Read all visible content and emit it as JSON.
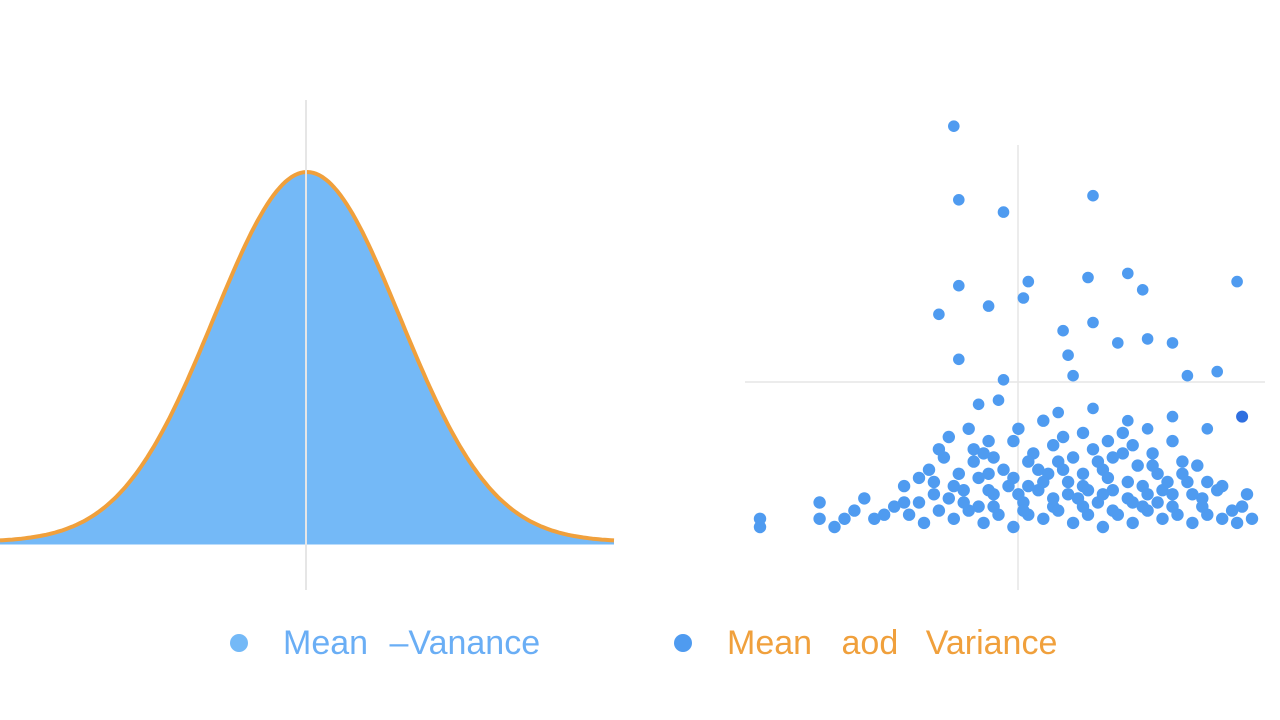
{
  "colors": {
    "fill_blue": "#74b9f7",
    "curve_orange": "#f0a03c",
    "point_blue": "#4f9bf0",
    "point_dark": "#2f6fe0",
    "text_blue": "#6aaef5",
    "text_orange": "#f0a03c",
    "guide_gray": "#e6e6e6"
  },
  "legend": [
    {
      "marker": "dot",
      "parts": [
        {
          "text": "Mean",
          "color": "text_blue"
        },
        {
          "text": "–Vanance",
          "color": "text_blue"
        }
      ]
    },
    {
      "marker": "dot",
      "parts": [
        {
          "text": "Mean",
          "color": "text_orange"
        },
        {
          "text": "aod",
          "color": "text_orange"
        },
        {
          "text": "Variance",
          "color": "text_orange"
        }
      ]
    }
  ],
  "chart_data": [
    {
      "type": "area",
      "distribution": "normal",
      "mean": 0,
      "sd": 1,
      "xlim": [
        -3.3,
        3.3
      ],
      "ylim": [
        0,
        0.4
      ],
      "mean_line": 0,
      "grid": false
    },
    {
      "type": "scatter",
      "xlim": [
        0,
        100
      ],
      "ylim": [
        0,
        100
      ],
      "crosshair": [
        50,
        30
      ],
      "outliers": [
        [
          40,
          98
        ],
        [
          41,
          80
        ],
        [
          50,
          77
        ],
        [
          68,
          81
        ],
        [
          55,
          60
        ],
        [
          67,
          61
        ],
        [
          75,
          62
        ],
        [
          78,
          58
        ],
        [
          97,
          60
        ],
        [
          37,
          52
        ],
        [
          41,
          59
        ],
        [
          47,
          54
        ],
        [
          54,
          56
        ],
        [
          62,
          48
        ],
        [
          68,
          50
        ],
        [
          73,
          45
        ],
        [
          79,
          46
        ],
        [
          84,
          45
        ],
        [
          41,
          41
        ],
        [
          50,
          36
        ],
        [
          63,
          42
        ],
        [
          64,
          37
        ],
        [
          87,
          37
        ],
        [
          93,
          38
        ],
        [
          45,
          30
        ],
        [
          49,
          31
        ],
        [
          61,
          28
        ],
        [
          68,
          29
        ],
        [
          75,
          26
        ],
        [
          79,
          24
        ],
        [
          84,
          27
        ],
        [
          91,
          24
        ]
      ],
      "cluster": [
        [
          1,
          0
        ],
        [
          1,
          2
        ],
        [
          13,
          2
        ],
        [
          13,
          6
        ],
        [
          22,
          7
        ],
        [
          30,
          6
        ],
        [
          44,
          16
        ],
        [
          47,
          13
        ],
        [
          52,
          12
        ],
        [
          57,
          14
        ],
        [
          61,
          16
        ],
        [
          66,
          13
        ],
        [
          70,
          14
        ],
        [
          77,
          15
        ],
        [
          81,
          13
        ],
        [
          86,
          16
        ],
        [
          89,
          15
        ],
        [
          91,
          11
        ],
        [
          94,
          10
        ],
        [
          99,
          8
        ],
        [
          30,
          10
        ],
        [
          33,
          6
        ],
        [
          36,
          11
        ],
        [
          39,
          7
        ],
        [
          42,
          9
        ],
        [
          45,
          5
        ],
        [
          48,
          8
        ],
        [
          51,
          10
        ],
        [
          54,
          6
        ],
        [
          57,
          9
        ],
        [
          60,
          5
        ],
        [
          63,
          8
        ],
        [
          66,
          10
        ],
        [
          69,
          6
        ],
        [
          72,
          9
        ],
        [
          75,
          7
        ],
        [
          78,
          10
        ],
        [
          81,
          6
        ],
        [
          84,
          8
        ],
        [
          87,
          11
        ],
        [
          90,
          7
        ],
        [
          93,
          9
        ],
        [
          31,
          3
        ],
        [
          34,
          1
        ],
        [
          37,
          4
        ],
        [
          40,
          2
        ],
        [
          43,
          4
        ],
        [
          46,
          1
        ],
        [
          49,
          3
        ],
        [
          52,
          0
        ],
        [
          55,
          3
        ],
        [
          58,
          2
        ],
        [
          61,
          4
        ],
        [
          64,
          1
        ],
        [
          67,
          3
        ],
        [
          70,
          0
        ],
        [
          73,
          3
        ],
        [
          76,
          1
        ],
        [
          79,
          4
        ],
        [
          82,
          2
        ],
        [
          85,
          3
        ],
        [
          88,
          1
        ],
        [
          91,
          3
        ],
        [
          94,
          2
        ],
        [
          35,
          14
        ],
        [
          38,
          17
        ],
        [
          41,
          13
        ],
        [
          44,
          19
        ],
        [
          48,
          17
        ],
        [
          52,
          21
        ],
        [
          56,
          18
        ],
        [
          60,
          20
        ],
        [
          64,
          17
        ],
        [
          68,
          19
        ],
        [
          72,
          17
        ],
        [
          76,
          20
        ],
        [
          80,
          18
        ],
        [
          84,
          21
        ],
        [
          39,
          22
        ],
        [
          43,
          24
        ],
        [
          47,
          21
        ],
        [
          53,
          24
        ],
        [
          58,
          26
        ],
        [
          62,
          22
        ],
        [
          66,
          23
        ],
        [
          71,
          21
        ],
        [
          74,
          23
        ],
        [
          45,
          12
        ],
        [
          50,
          14
        ],
        [
          55,
          10
        ],
        [
          59,
          13
        ],
        [
          63,
          11
        ],
        [
          67,
          9
        ],
        [
          71,
          12
        ],
        [
          75,
          11
        ],
        [
          79,
          8
        ],
        [
          83,
          11
        ],
        [
          28,
          5
        ],
        [
          26,
          3
        ],
        [
          24,
          2
        ],
        [
          20,
          4
        ],
        [
          18,
          2
        ],
        [
          16,
          0
        ],
        [
          96,
          4
        ],
        [
          97,
          1
        ],
        [
          98,
          5
        ],
        [
          100,
          2
        ],
        [
          36,
          8
        ],
        [
          42,
          6
        ],
        [
          48,
          5
        ],
        [
          54,
          4
        ],
        [
          60,
          7
        ],
        [
          66,
          5
        ],
        [
          72,
          4
        ],
        [
          78,
          5
        ],
        [
          84,
          5
        ],
        [
          90,
          5
        ],
        [
          33,
          12
        ],
        [
          40,
          10
        ],
        [
          47,
          9
        ],
        [
          53,
          8
        ],
        [
          58,
          11
        ],
        [
          65,
          7
        ],
        [
          70,
          8
        ],
        [
          76,
          6
        ],
        [
          82,
          9
        ],
        [
          88,
          8
        ],
        [
          37,
          19
        ],
        [
          46,
          18
        ],
        [
          55,
          16
        ],
        [
          62,
          14
        ],
        [
          69,
          16
        ],
        [
          74,
          18
        ],
        [
          80,
          15
        ],
        [
          86,
          13
        ]
      ],
      "highlight": [
        [
          98,
          27
        ]
      ]
    }
  ]
}
